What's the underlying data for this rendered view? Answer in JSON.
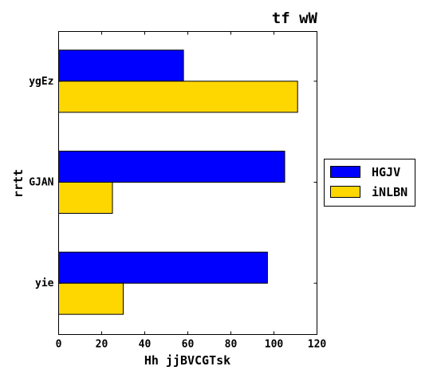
{
  "chart_data": {
    "type": "bar",
    "orientation": "horizontal",
    "title": "tf wW",
    "xlabel": "Hh jjBVCGTsk",
    "ylabel": "rrtt",
    "categories": [
      "ygEz",
      "GJAN",
      "yie"
    ],
    "series": [
      {
        "name": "HGJV",
        "color": "#0000ff",
        "values": [
          58,
          105,
          97
        ]
      },
      {
        "name": "iNLBN",
        "color": "#ffd700",
        "values": [
          111,
          25,
          30
        ]
      }
    ],
    "xlim": [
      0,
      120
    ],
    "xticks": [
      "0",
      "20",
      "40",
      "60",
      "80",
      "100",
      "120"
    ],
    "grid": false,
    "legend_position": "right"
  }
}
